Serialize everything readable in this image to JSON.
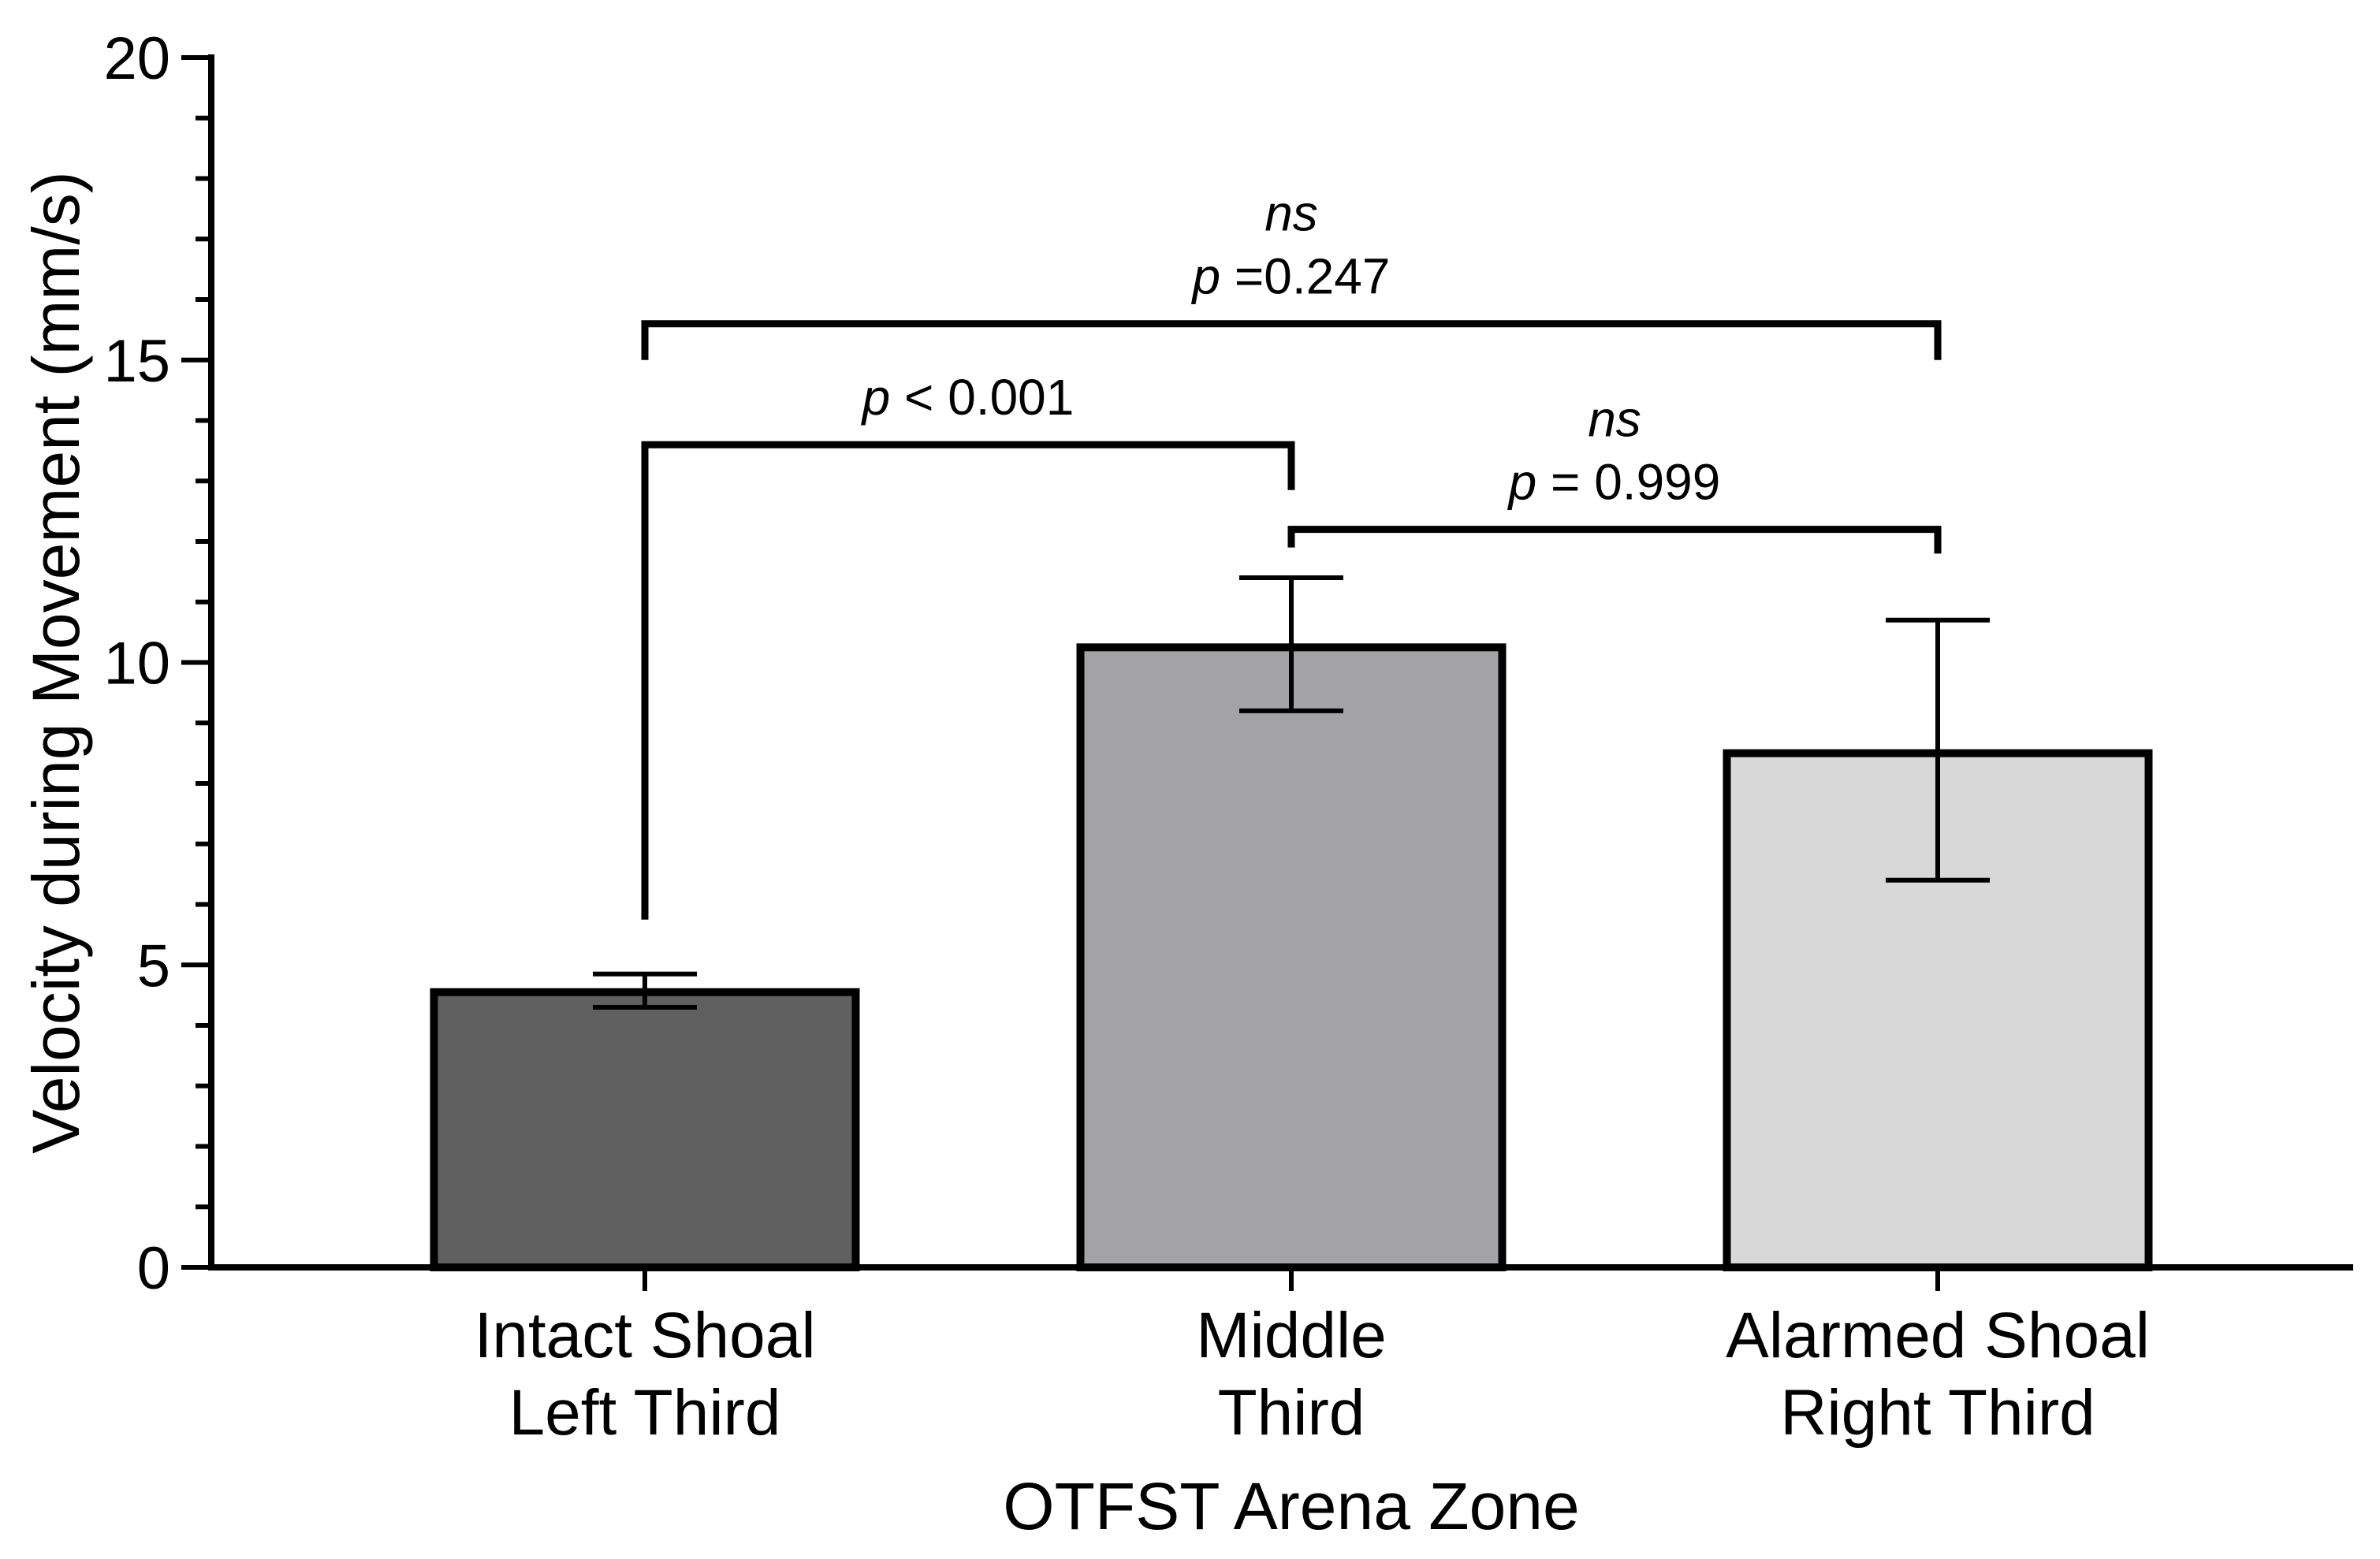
{
  "chart_data": {
    "type": "bar",
    "title": "",
    "xlabel": "OTFST  Arena Zone",
    "ylabel": "Velocity during  Movement  (mm/s)",
    "ylim": [
      0,
      20
    ],
    "yticks": [
      0,
      5,
      10,
      15,
      20
    ],
    "grid": false,
    "categories": [
      [
        "Intact Shoal",
        "Left Third"
      ],
      [
        "Middle",
        "Third"
      ],
      [
        "Alarmed Shoal",
        "Right Third"
      ]
    ],
    "values": [
      4.55,
      10.25,
      8.5
    ],
    "error_low": [
      4.3,
      9.2,
      6.4
    ],
    "error_high": [
      4.85,
      11.4,
      10.7
    ],
    "bar_colors": [
      "#606060",
      "#a3a3a6",
      "#d8d8d8"
    ],
    "comparisons": [
      {
        "from": 0,
        "to": 2,
        "y": 15.6,
        "left_end": 15.0,
        "right_end": 15.0,
        "ns": "ns",
        "p_prefix": "p",
        "p_text": " =0.247"
      },
      {
        "from": 0,
        "to": 1,
        "y": 13.6,
        "left_end": 5.75,
        "right_end": 12.85,
        "ns": "",
        "p_prefix": "p",
        "p_text": " < 0.001"
      },
      {
        "from": 1,
        "to": 2,
        "y": 12.2,
        "left_end": 11.9,
        "right_end": 11.8,
        "ns": "ns",
        "p_prefix": "p",
        "p_text": " = 0.999"
      }
    ]
  }
}
